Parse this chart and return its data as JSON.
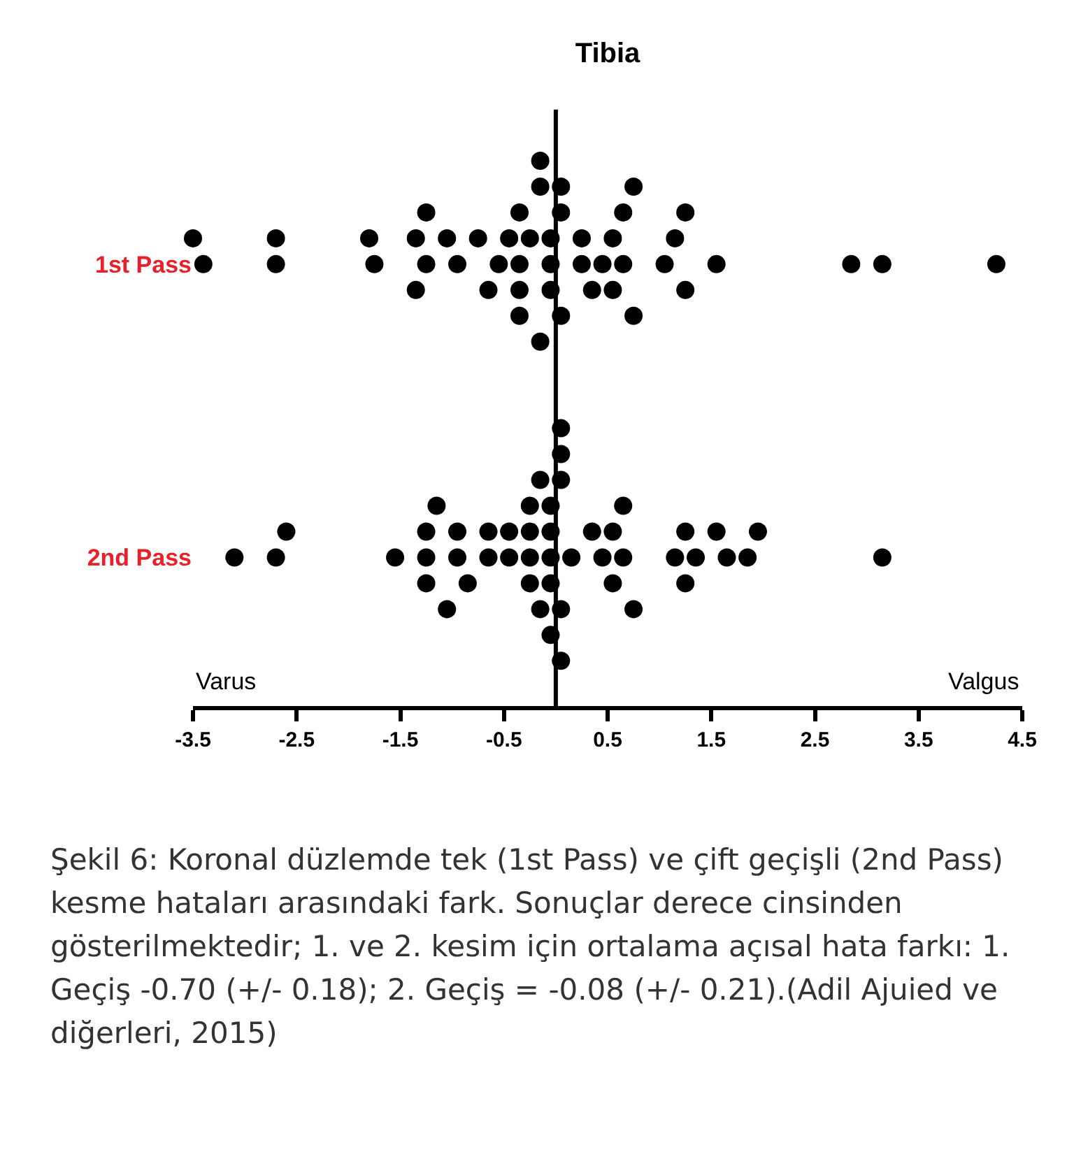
{
  "chart_data": {
    "type": "scatter",
    "orientation": "horizontal",
    "title": "Tibia",
    "categories": [
      "1st Pass",
      "2nd Pass"
    ],
    "series": [
      {
        "color": "#000000",
        "x": [
          "1st Pass",
          "1st Pass",
          "1st Pass",
          "1st Pass",
          "1st Pass",
          "1st Pass",
          "1st Pass",
          "1st Pass",
          "1st Pass",
          "1st Pass",
          "1st Pass",
          "1st Pass",
          "1st Pass",
          "1st Pass",
          "1st Pass",
          "1st Pass",
          "1st Pass",
          "1st Pass",
          "1st Pass",
          "1st Pass",
          "1st Pass",
          "1st Pass",
          "1st Pass",
          "1st Pass",
          "1st Pass",
          "1st Pass",
          "1st Pass",
          "1st Pass",
          "1st Pass",
          "1st Pass",
          "1st Pass",
          "1st Pass",
          "1st Pass",
          "1st Pass",
          "1st Pass",
          "1st Pass",
          "1st Pass",
          "1st Pass",
          "1st Pass",
          "1st Pass",
          "1st Pass",
          "1st Pass",
          "1st Pass",
          "1st Pass",
          "1st Pass",
          "1st Pass",
          "1st Pass",
          "1st Pass"
        ],
        "values": [
          -3.4,
          -3.5,
          -2.7,
          -2.7,
          -1.75,
          -1.8,
          -1.25,
          -1.35,
          -1.35,
          -1.25,
          -0.95,
          -1.05,
          -0.55,
          -0.75,
          -0.65,
          -0.45,
          -0.35,
          -0.35,
          -0.35,
          -0.35,
          -0.25,
          -0.15,
          -0.15,
          -0.15,
          -0.05,
          -0.05,
          -0.05,
          0.05,
          0.05,
          0.05,
          0.25,
          0.25,
          0.35,
          0.45,
          0.55,
          0.55,
          0.65,
          0.65,
          0.75,
          0.75,
          1.05,
          1.15,
          1.25,
          1.25,
          1.55,
          2.85,
          3.15,
          4.25
        ]
      },
      {
        "color": "#000000",
        "x": [
          "2nd Pass",
          "2nd Pass",
          "2nd Pass",
          "2nd Pass",
          "2nd Pass",
          "2nd Pass",
          "2nd Pass",
          "2nd Pass",
          "2nd Pass",
          "2nd Pass",
          "2nd Pass",
          "2nd Pass",
          "2nd Pass",
          "2nd Pass",
          "2nd Pass",
          "2nd Pass",
          "2nd Pass",
          "2nd Pass",
          "2nd Pass",
          "2nd Pass",
          "2nd Pass",
          "2nd Pass",
          "2nd Pass",
          "2nd Pass",
          "2nd Pass",
          "2nd Pass",
          "2nd Pass",
          "2nd Pass",
          "2nd Pass",
          "2nd Pass",
          "2nd Pass",
          "2nd Pass",
          "2nd Pass",
          "2nd Pass",
          "2nd Pass",
          "2nd Pass",
          "2nd Pass",
          "2nd Pass",
          "2nd Pass",
          "2nd Pass",
          "2nd Pass",
          "2nd Pass",
          "2nd Pass",
          "2nd Pass",
          "2nd Pass",
          "2nd Pass",
          "2nd Pass",
          "2nd Pass",
          "2nd Pass"
        ],
        "values": [
          -3.1,
          -2.7,
          -2.6,
          -1.55,
          -1.25,
          -1.25,
          -1.25,
          -1.15,
          -1.05,
          -0.95,
          -0.95,
          -0.85,
          -0.65,
          -0.65,
          -0.45,
          -0.45,
          -0.25,
          -0.25,
          -0.25,
          -0.25,
          -0.15,
          -0.15,
          -0.05,
          -0.05,
          -0.05,
          -0.05,
          -0.05,
          0.05,
          0.05,
          0.05,
          0.05,
          0.05,
          0.15,
          0.35,
          0.45,
          0.55,
          0.55,
          0.65,
          0.65,
          0.75,
          1.15,
          1.25,
          1.25,
          1.35,
          1.55,
          1.65,
          1.85,
          1.95,
          3.15
        ]
      }
    ],
    "xlim": [
      -3.5,
      4.5
    ],
    "xticks": [
      -3.5,
      -2.5,
      -1.5,
      -0.5,
      0.5,
      1.5,
      2.5,
      3.5,
      4.5
    ],
    "ref_lines": [
      {
        "axis": "x",
        "value": 0,
        "color": "#000000"
      }
    ],
    "marker": "circle",
    "grid": false,
    "annotations": [
      "Varus",
      "Valgus",
      "Şekil 6: Koronal düzlemde tek (1st Pass) ve çift geçişli (2nd Pass) kesme hataları arasındaki fark. Sonuçlar derece cinsinden gösterilmektedir; 1. ve 2. kesim için ortalama açısal hata farkı: 1. Geçiş -0.70 (+/- 0.18); 2. Geçiş = -0.08 (+/- 0.21).(Adil Ajuied ve diğerleri, 2015)"
    ]
  }
}
